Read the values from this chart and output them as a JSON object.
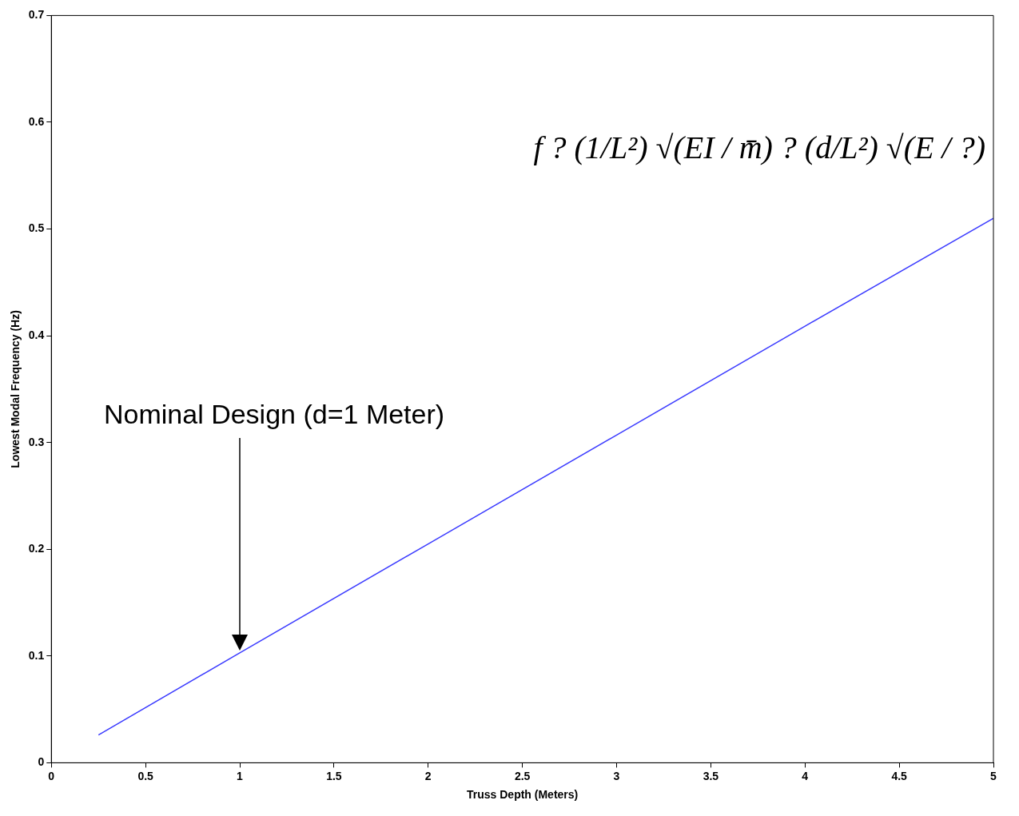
{
  "chart_data": {
    "type": "line",
    "xlabel": "Truss Depth (Meters)",
    "ylabel": "Lowest Modal Frequency (Hz)",
    "x": [
      0.25,
      1,
      2,
      3,
      4,
      5
    ],
    "series": [
      {
        "color": "#3b3bff",
        "values": [
          0.026,
          0.103,
          0.205,
          0.307,
          0.409,
          0.51
        ]
      }
    ],
    "xlim": [
      0,
      5
    ],
    "xticks": [
      0,
      0.5,
      1,
      1.5,
      2,
      2.5,
      3,
      3.5,
      4,
      4.5,
      5
    ],
    "ylim": [
      0,
      0.7
    ],
    "yticks": [
      0,
      0.1,
      0.2,
      0.3,
      0.4,
      0.5,
      0.6,
      0.7
    ],
    "grid": false,
    "legend": false,
    "marker": "none",
    "line_style": "solid",
    "annotations": [
      "Nominal Design (d=1 Meter)",
      "f ? (1/L²) √(EI / m̄) ? (d/L²) √(E / ?)"
    ]
  }
}
